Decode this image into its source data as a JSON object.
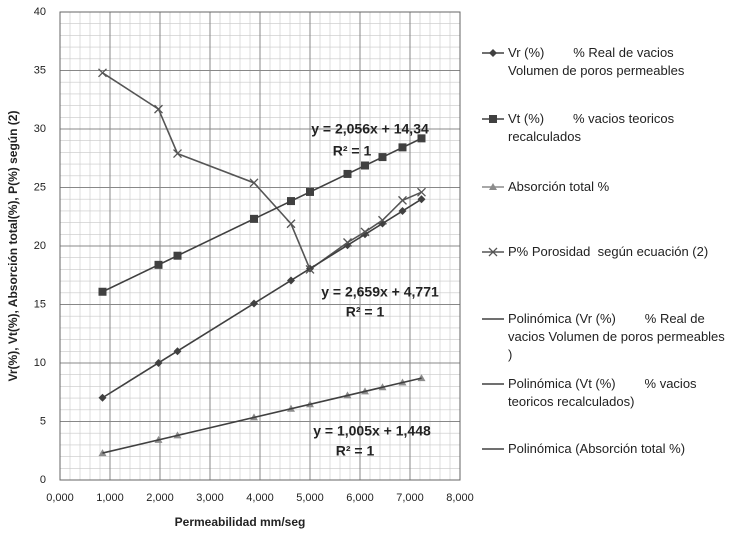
{
  "chart_data": {
    "type": "scatter",
    "x_label": "Permeabilidad    mm/seg",
    "y_label": "Vr(%), Vt(%), Absorción total(%), P(%) según (2)",
    "xlim": [
      0,
      8
    ],
    "ylim": [
      0,
      40
    ],
    "xticks": [
      {
        "value": 0,
        "label": "0,000"
      },
      {
        "value": 1,
        "label": "1,000"
      },
      {
        "value": 2,
        "label": "2,000"
      },
      {
        "value": 3,
        "label": "3,000"
      },
      {
        "value": 4,
        "label": "4,000"
      },
      {
        "value": 5,
        "label": "5,000"
      },
      {
        "value": 6,
        "label": "6,000"
      },
      {
        "value": 7,
        "label": "7,000"
      },
      {
        "value": 8,
        "label": "8,000"
      }
    ],
    "yticks": [
      0,
      5,
      10,
      15,
      20,
      25,
      30,
      35,
      40
    ],
    "grid": true,
    "minor_grid": {
      "x": 0.2,
      "y": 1
    },
    "legend": "right",
    "series": [
      {
        "name": "Vr (%)        % Real de vacios Volumen de poros permeables",
        "color": "#404040",
        "marker": "diamond",
        "line": false,
        "x": [
          0.85,
          1.97,
          2.35,
          3.88,
          4.62,
          5.0,
          5.75,
          6.1,
          6.45,
          6.85,
          7.23
        ],
        "values": [
          7.03,
          10.0,
          11.0,
          15.09,
          17.05,
          18.07,
          20.06,
          21.0,
          21.92,
          22.99,
          24.0
        ]
      },
      {
        "name": "Vt (%)        % vacios teoricos recalculados",
        "color": "#404040",
        "marker": "square",
        "line": false,
        "x": [
          0.85,
          1.97,
          2.35,
          3.88,
          4.62,
          5.0,
          5.75,
          6.1,
          6.45,
          6.85,
          7.23
        ],
        "values": [
          16.09,
          18.39,
          19.17,
          22.32,
          23.84,
          24.62,
          26.16,
          26.88,
          27.6,
          28.43,
          29.2
        ]
      },
      {
        "name": "Absorción total %",
        "color": "#8c8c8c",
        "marker": "triangle",
        "line": false,
        "x": [
          0.85,
          1.97,
          2.35,
          3.88,
          4.62,
          5.0,
          5.75,
          6.1,
          6.45,
          6.85,
          7.23
        ],
        "values": [
          2.3,
          3.43,
          3.81,
          5.35,
          6.09,
          6.47,
          7.23,
          7.58,
          7.93,
          8.33,
          8.71
        ]
      },
      {
        "name": "P% Porosidad  según ecuación (2)",
        "color": "#555555",
        "marker": "x",
        "line": true,
        "x": [
          0.85,
          1.97,
          2.35,
          3.88,
          4.62,
          5.0,
          5.75,
          6.1,
          6.45,
          6.85,
          7.23
        ],
        "values": [
          34.8,
          31.7,
          27.9,
          25.4,
          21.9,
          18.0,
          20.3,
          21.2,
          22.2,
          23.9,
          24.6
        ]
      },
      {
        "name": "Polinómica (Vr (%)        % Real de vacios Volumen de poros permeables )",
        "color": "#404040",
        "marker": "none",
        "line": true,
        "x": [
          0.85,
          7.23
        ],
        "values": [
          7.03,
          24.0
        ]
      },
      {
        "name": "Polinómica (Vt (%)        % vacios teoricos recalculados)",
        "color": "#404040",
        "marker": "none",
        "line": true,
        "x": [
          0.85,
          7.23
        ],
        "values": [
          16.09,
          29.2
        ]
      },
      {
        "name": "Polinómica (Absorción total %)",
        "color": "#404040",
        "marker": "none",
        "line": true,
        "x": [
          0.85,
          7.23
        ],
        "values": [
          2.3,
          8.71
        ]
      }
    ],
    "annotations": [
      {
        "equation": "y = 2,056x + 14,34",
        "r2": "R² = 1"
      },
      {
        "equation": "y = 2,659x + 4,771",
        "r2": "R² = 1"
      },
      {
        "equation": "y = 1,005x + 1,448",
        "r2": "R² = 1"
      }
    ]
  }
}
